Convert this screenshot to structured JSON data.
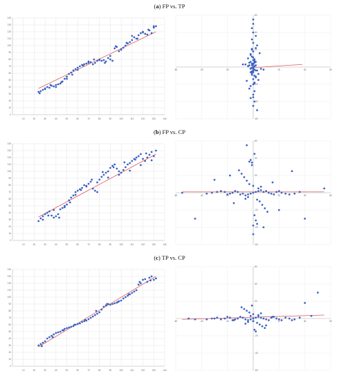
{
  "chart_data": [
    {
      "panel": "a",
      "title": "FP vs. TP",
      "plot": "left",
      "type": "scatter",
      "grid": true,
      "xlim": [
        0,
        140
      ],
      "ylim": [
        0,
        140
      ],
      "xstep": 10,
      "ystep": 10,
      "trend_color": "#e05a5a",
      "point_color": "#3b62c4",
      "trend": [
        [
          24,
          38
        ],
        [
          132,
          120
        ]
      ],
      "x": [
        24,
        26,
        28,
        30,
        32,
        34,
        36,
        38,
        40,
        42,
        44,
        46,
        48,
        50,
        52,
        54,
        56,
        58,
        60,
        62,
        64,
        66,
        68,
        70,
        72,
        74,
        76,
        78,
        80,
        82,
        84,
        86,
        88,
        90,
        92,
        94,
        96,
        98,
        100,
        102,
        104,
        106,
        108,
        110,
        112,
        114,
        116,
        118,
        120,
        122,
        124,
        126,
        128,
        130,
        132,
        25,
        30,
        35,
        40,
        45,
        50,
        55,
        60,
        65,
        70,
        75,
        80,
        85,
        90,
        95,
        100,
        105,
        110,
        115,
        120,
        125,
        130
      ],
      "y": [
        33,
        34,
        36,
        38,
        40,
        39,
        42,
        41,
        43,
        44,
        45,
        48,
        52,
        55,
        59,
        61,
        64,
        66,
        68,
        70,
        72,
        73,
        74,
        75,
        76,
        73,
        75,
        78,
        80,
        78,
        79,
        77,
        82,
        80,
        78,
        96,
        98,
        92,
        95,
        97,
        100,
        103,
        105,
        108,
        112,
        110,
        115,
        118,
        120,
        117,
        116,
        122,
        118,
        126,
        128,
        31,
        37,
        43,
        40,
        47,
        52,
        58,
        65,
        71,
        77,
        80,
        79,
        75,
        85,
        99,
        94,
        104,
        114,
        110,
        119,
        123,
        128
      ]
    },
    {
      "panel": "a",
      "plot": "right",
      "type": "scatter",
      "grid": true,
      "xlim": [
        -60,
        60
      ],
      "ylim": [
        -60,
        60
      ],
      "x_ticks": [
        -60,
        -40,
        -20,
        0,
        20,
        40,
        60
      ],
      "y_ticks": [
        -60,
        -40,
        -20,
        0,
        20,
        40,
        60
      ],
      "trend_color": "#e05a5a",
      "point_color": "#3b62c4",
      "trend": [
        [
          -3,
          -1
        ],
        [
          38,
          3
        ]
      ],
      "x": [
        0,
        1,
        -1,
        2,
        -2,
        0,
        1,
        -1,
        3,
        -3,
        0,
        2,
        -2,
        1,
        -1,
        0,
        4,
        -4,
        1,
        -1,
        2,
        -2,
        0,
        5,
        -5,
        0,
        1,
        -1,
        0,
        2,
        -2,
        3,
        -3,
        0,
        1,
        -1,
        0,
        2,
        -2,
        0,
        1,
        -1,
        0,
        0,
        3,
        -3,
        6,
        -6,
        0,
        1,
        -1,
        0,
        2,
        -2,
        4,
        -4,
        0,
        1,
        -1,
        0,
        0,
        1,
        -1,
        8,
        -8,
        0,
        2,
        -2,
        0,
        1,
        -1,
        0,
        0
      ],
      "y": [
        0,
        1,
        -1,
        2,
        -2,
        3,
        -3,
        4,
        -4,
        5,
        -5,
        6,
        -6,
        7,
        -7,
        8,
        -8,
        10,
        -10,
        12,
        -12,
        14,
        -14,
        16,
        -16,
        18,
        -18,
        20,
        -20,
        22,
        -22,
        25,
        -25,
        28,
        -28,
        32,
        -32,
        36,
        -36,
        40,
        -40,
        45,
        -45,
        50,
        -50,
        2,
        -2,
        3,
        -3,
        9,
        -9,
        11,
        -11,
        15,
        -15,
        1,
        -1,
        5,
        -5,
        0,
        -1,
        1,
        2,
        -3,
        3,
        4,
        -4,
        6,
        -6,
        -19,
        21,
        -35,
        55
      ]
    },
    {
      "panel": "b",
      "title": "FP vs. CP",
      "plot": "left",
      "type": "scatter",
      "grid": true,
      "xlim": [
        0,
        140
      ],
      "ylim": [
        0,
        140
      ],
      "xstep": 10,
      "ystep": 10,
      "trend_color": "#e05a5a",
      "point_color": "#3b62c4",
      "trend": [
        [
          24,
          34
        ],
        [
          132,
          125
        ]
      ],
      "x": [
        24,
        26,
        28,
        30,
        32,
        34,
        36,
        38,
        40,
        42,
        44,
        46,
        48,
        50,
        52,
        54,
        56,
        58,
        60,
        62,
        64,
        66,
        68,
        70,
        72,
        74,
        76,
        78,
        80,
        82,
        84,
        86,
        88,
        90,
        92,
        94,
        96,
        98,
        100,
        102,
        104,
        106,
        108,
        110,
        112,
        114,
        116,
        118,
        120,
        122,
        124,
        126,
        128,
        130,
        132,
        28,
        33,
        38,
        43,
        48,
        53,
        58,
        63,
        68,
        73,
        78,
        83,
        88,
        93,
        98,
        103,
        108,
        113,
        118,
        123,
        128
      ],
      "y": [
        28,
        32,
        35,
        38,
        40,
        42,
        36,
        33,
        35,
        38,
        45,
        47,
        50,
        52,
        58,
        62,
        65,
        70,
        72,
        74,
        76,
        80,
        78,
        82,
        85,
        75,
        72,
        70,
        88,
        92,
        95,
        98,
        100,
        105,
        108,
        110,
        104,
        100,
        98,
        102,
        106,
        110,
        112,
        115,
        118,
        120,
        122,
        125,
        118,
        115,
        120,
        124,
        128,
        122,
        130,
        30,
        36,
        44,
        33,
        48,
        55,
        66,
        73,
        79,
        88,
        84,
        99,
        91,
        106,
        95,
        113,
        101,
        117,
        109,
        126,
        116
      ]
    },
    {
      "panel": "b",
      "plot": "right",
      "type": "scatter",
      "grid": true,
      "xlim": [
        -60,
        60
      ],
      "ylim": [
        -60,
        60
      ],
      "x_ticks": [
        -60,
        -40,
        -20,
        0,
        20,
        40,
        60
      ],
      "y_ticks": [
        -60,
        -40,
        -20,
        0,
        20,
        40,
        60
      ],
      "trend_color": "#e05a5a",
      "point_color": "#3b62c4",
      "trend": [
        [
          -55,
          1
        ],
        [
          55,
          1
        ]
      ],
      "x": [
        0,
        2,
        -2,
        4,
        -4,
        6,
        -6,
        8,
        -8,
        10,
        -10,
        12,
        -12,
        14,
        -14,
        16,
        -16,
        18,
        -18,
        20,
        -20,
        22,
        -22,
        25,
        -25,
        28,
        -28,
        32,
        -32,
        36,
        -36,
        0,
        3,
        -3,
        5,
        -5,
        7,
        -7,
        9,
        -9,
        11,
        -11,
        1,
        -1,
        2,
        -2,
        0,
        4,
        -4,
        6,
        -6,
        15,
        -15,
        -45,
        40,
        -30,
        55,
        -55,
        30,
        -5,
        8,
        20,
        -18,
        0,
        1,
        -1,
        3,
        -3
      ],
      "y": [
        0,
        1,
        -1,
        2,
        -2,
        3,
        -3,
        1,
        -1,
        2,
        -2,
        0,
        1,
        -1,
        2,
        -2,
        0,
        1,
        -1,
        2,
        -2,
        0,
        1,
        -1,
        2,
        -2,
        1,
        -1,
        0,
        1,
        -1,
        8,
        -8,
        10,
        -10,
        14,
        -14,
        18,
        -18,
        22,
        -22,
        26,
        -26,
        32,
        -32,
        38,
        -38,
        5,
        -5,
        7,
        -7,
        12,
        -12,
        -30,
        -30,
        15,
        5,
        0,
        25,
        55,
        -40,
        -20,
        20,
        -48,
        45,
        35,
        -36,
        36
      ]
    },
    {
      "panel": "c",
      "title": "TP vs. CP",
      "plot": "left",
      "type": "scatter",
      "grid": true,
      "xlim": [
        0,
        140
      ],
      "ylim": [
        0,
        140
      ],
      "xstep": 10,
      "ystep": 10,
      "trend_color": "#e05a5a",
      "point_color": "#3b62c4",
      "trend": [
        [
          24,
          28
        ],
        [
          132,
          130
        ]
      ],
      "x": [
        24,
        26,
        28,
        30,
        32,
        34,
        36,
        38,
        40,
        42,
        44,
        46,
        48,
        50,
        52,
        54,
        56,
        58,
        60,
        62,
        64,
        66,
        68,
        70,
        72,
        74,
        76,
        78,
        80,
        82,
        84,
        86,
        88,
        90,
        92,
        94,
        96,
        98,
        100,
        102,
        104,
        106,
        108,
        110,
        112,
        114,
        116,
        118,
        120,
        122,
        124,
        126,
        128,
        130,
        132,
        27,
        37,
        47,
        57,
        67,
        77,
        87,
        97,
        107,
        117,
        127
      ],
      "y": [
        30,
        32,
        34,
        36,
        40,
        42,
        44,
        46,
        48,
        49,
        50,
        52,
        54,
        55,
        56,
        57,
        58,
        60,
        61,
        62,
        64,
        65,
        66,
        68,
        70,
        72,
        74,
        76,
        78,
        82,
        86,
        88,
        90,
        89,
        90,
        91,
        92,
        94,
        95,
        98,
        100,
        102,
        104,
        106,
        108,
        110,
        118,
        120,
        125,
        126,
        122,
        128,
        130,
        125,
        127,
        29,
        42,
        52,
        60,
        67,
        80,
        90,
        93,
        104,
        122,
        124
      ]
    },
    {
      "panel": "c",
      "plot": "right",
      "type": "scatter",
      "grid": true,
      "xlim": [
        -60,
        60
      ],
      "ylim": [
        -60,
        60
      ],
      "x_ticks": [
        -60,
        -40,
        -20,
        0,
        20,
        40,
        60
      ],
      "y_ticks": [
        -60,
        -40,
        -20,
        0,
        20,
        40,
        60
      ],
      "trend_color": "#e05a5a",
      "point_color": "#3b62c4",
      "trend": [
        [
          -55,
          -1
        ],
        [
          55,
          4
        ]
      ],
      "x": [
        0,
        2,
        -2,
        4,
        -4,
        6,
        -6,
        8,
        -8,
        10,
        -10,
        12,
        -12,
        14,
        -14,
        16,
        -16,
        18,
        -18,
        20,
        -20,
        22,
        -22,
        25,
        -25,
        28,
        -28,
        32,
        -32,
        36,
        -36,
        0,
        3,
        -3,
        5,
        -5,
        7,
        -7,
        9,
        -9,
        1,
        -1,
        2,
        -2,
        0,
        4,
        -4,
        6,
        -6,
        15,
        -15,
        -45,
        45,
        -30,
        30,
        40,
        50,
        -50,
        0,
        10
      ],
      "y": [
        0,
        1,
        -1,
        2,
        -2,
        1,
        -1,
        0,
        1,
        -1,
        2,
        -2,
        0,
        1,
        -1,
        2,
        -2,
        0,
        1,
        -1,
        2,
        -2,
        0,
        1,
        -1,
        0,
        1,
        -1,
        0,
        1,
        -1,
        5,
        -5,
        7,
        -7,
        9,
        -9,
        11,
        -11,
        13,
        -13,
        15,
        -15,
        3,
        -3,
        4,
        -4,
        6,
        -6,
        2,
        -2,
        -1,
        3,
        0,
        -2,
        18,
        30,
        0,
        -3,
        -8
      ]
    }
  ]
}
